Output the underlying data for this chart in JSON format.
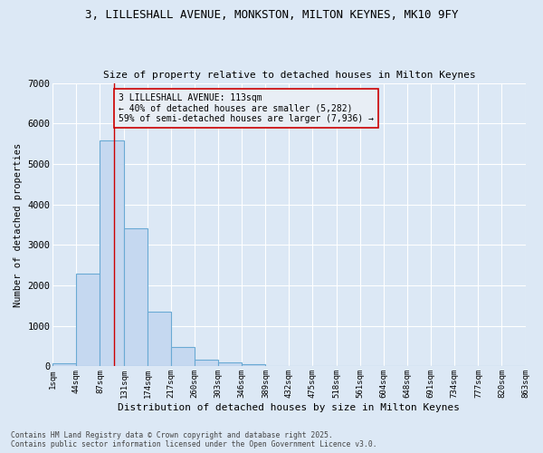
{
  "title_line1": "3, LILLESHALL AVENUE, MONKSTON, MILTON KEYNES, MK10 9FY",
  "title_line2": "Size of property relative to detached houses in Milton Keynes",
  "xlabel": "Distribution of detached houses by size in Milton Keynes",
  "ylabel": "Number of detached properties",
  "bar_values": [
    70,
    2300,
    5580,
    3420,
    1350,
    480,
    175,
    95,
    55,
    10,
    5,
    3,
    2,
    1,
    1,
    0,
    0,
    0,
    0,
    0
  ],
  "bin_edges": [
    1,
    44,
    87,
    131,
    174,
    217,
    260,
    303,
    346,
    389,
    432,
    475,
    518,
    561,
    604,
    648,
    691,
    734,
    777,
    820,
    863
  ],
  "bar_color": "#c5d8f0",
  "bar_edge_color": "#6aaad4",
  "vline_x": 113,
  "vline_color": "#cc0000",
  "annotation_text": "3 LILLESHALL AVENUE: 113sqm\n← 40% of detached houses are smaller (5,282)\n59% of semi-detached houses are larger (7,936) →",
  "annotation_box_facecolor": "#e8eef5",
  "annotation_box_edgecolor": "#cc0000",
  "ylim": [
    0,
    7000
  ],
  "yticks": [
    0,
    1000,
    2000,
    3000,
    4000,
    5000,
    6000,
    7000
  ],
  "bg_color": "#dce8f5",
  "plot_bg_color": "#dce8f5",
  "grid_color": "#ffffff",
  "footer_line1": "Contains HM Land Registry data © Crown copyright and database right 2025.",
  "footer_line2": "Contains public sector information licensed under the Open Government Licence v3.0.",
  "tick_labels": [
    "1sqm",
    "44sqm",
    "87sqm",
    "131sqm",
    "174sqm",
    "217sqm",
    "260sqm",
    "303sqm",
    "346sqm",
    "389sqm",
    "432sqm",
    "475sqm",
    "518sqm",
    "561sqm",
    "604sqm",
    "648sqm",
    "691sqm",
    "734sqm",
    "777sqm",
    "820sqm",
    "863sqm"
  ]
}
